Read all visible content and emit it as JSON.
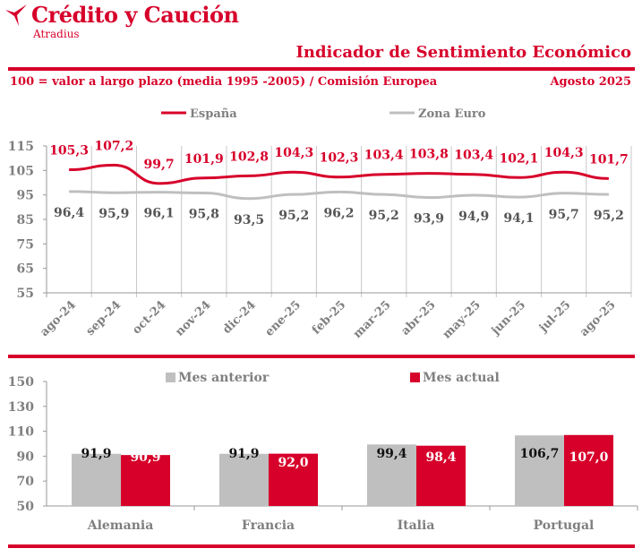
{
  "brand": {
    "name": "Crédito y Caución",
    "sub": "Atradius",
    "color": "#d7002a"
  },
  "header": {
    "title": "Indicador de Sentimiento Económico",
    "subtitle": "100 = valor a largo plazo (media 1995 -2005) / Comisión Europea",
    "date": "Agosto 2025"
  },
  "chart_data": [
    {
      "type": "line",
      "categories": [
        "ago-24",
        "sep-24",
        "oct-24",
        "nov-24",
        "dic-24",
        "ene-25",
        "feb-25",
        "mar-25",
        "abr-25",
        "may-25",
        "jun-25",
        "jul-25",
        "ago-25"
      ],
      "series": [
        {
          "name": "España",
          "color": "#d7002a",
          "values": [
            105.3,
            107.2,
            99.7,
            101.9,
            102.8,
            104.3,
            102.3,
            103.4,
            103.8,
            103.4,
            102.1,
            104.3,
            101.7
          ],
          "labels": [
            "105,3",
            "107,2",
            "99,7",
            "101,9",
            "102,8",
            "104,3",
            "102,3",
            "103,4",
            "103,8",
            "103,4",
            "102,1",
            "104,3",
            "101,7"
          ]
        },
        {
          "name": "Zona Euro",
          "color": "#bfbfbf",
          "values": [
            96.4,
            95.9,
            96.1,
            95.8,
            93.5,
            95.2,
            96.2,
            95.2,
            93.9,
            94.9,
            94.1,
            95.7,
            95.2
          ],
          "labels": [
            "96,4",
            "95,9",
            "96,1",
            "95,8",
            "93,5",
            "95,2",
            "96,2",
            "95,2",
            "93,9",
            "94,9",
            "94,1",
            "95,7",
            "95,2"
          ]
        }
      ],
      "ylim": [
        55,
        115
      ],
      "yticks": [
        "55",
        "65",
        "75",
        "85",
        "95",
        "105",
        "115"
      ],
      "grid": "vertical",
      "legend": "top"
    },
    {
      "type": "bar",
      "categories": [
        "Alemania",
        "Francia",
        "Italia",
        "Portugal"
      ],
      "series": [
        {
          "name": "Mes anterior",
          "color": "#bfbfbf",
          "values": [
            91.9,
            91.9,
            99.4,
            106.7
          ],
          "labels": [
            "91,9",
            "91,9",
            "99,4",
            "106,7"
          ]
        },
        {
          "name": "Mes actual",
          "color": "#d7002a",
          "values": [
            90.9,
            92.0,
            98.4,
            107.0
          ],
          "labels": [
            "90,9",
            "92,0",
            "98,4",
            "107,0"
          ]
        }
      ],
      "ylim": [
        50,
        150
      ],
      "yticks": [
        "50",
        "70",
        "90",
        "110",
        "130",
        "150"
      ],
      "legend": "top"
    }
  ]
}
